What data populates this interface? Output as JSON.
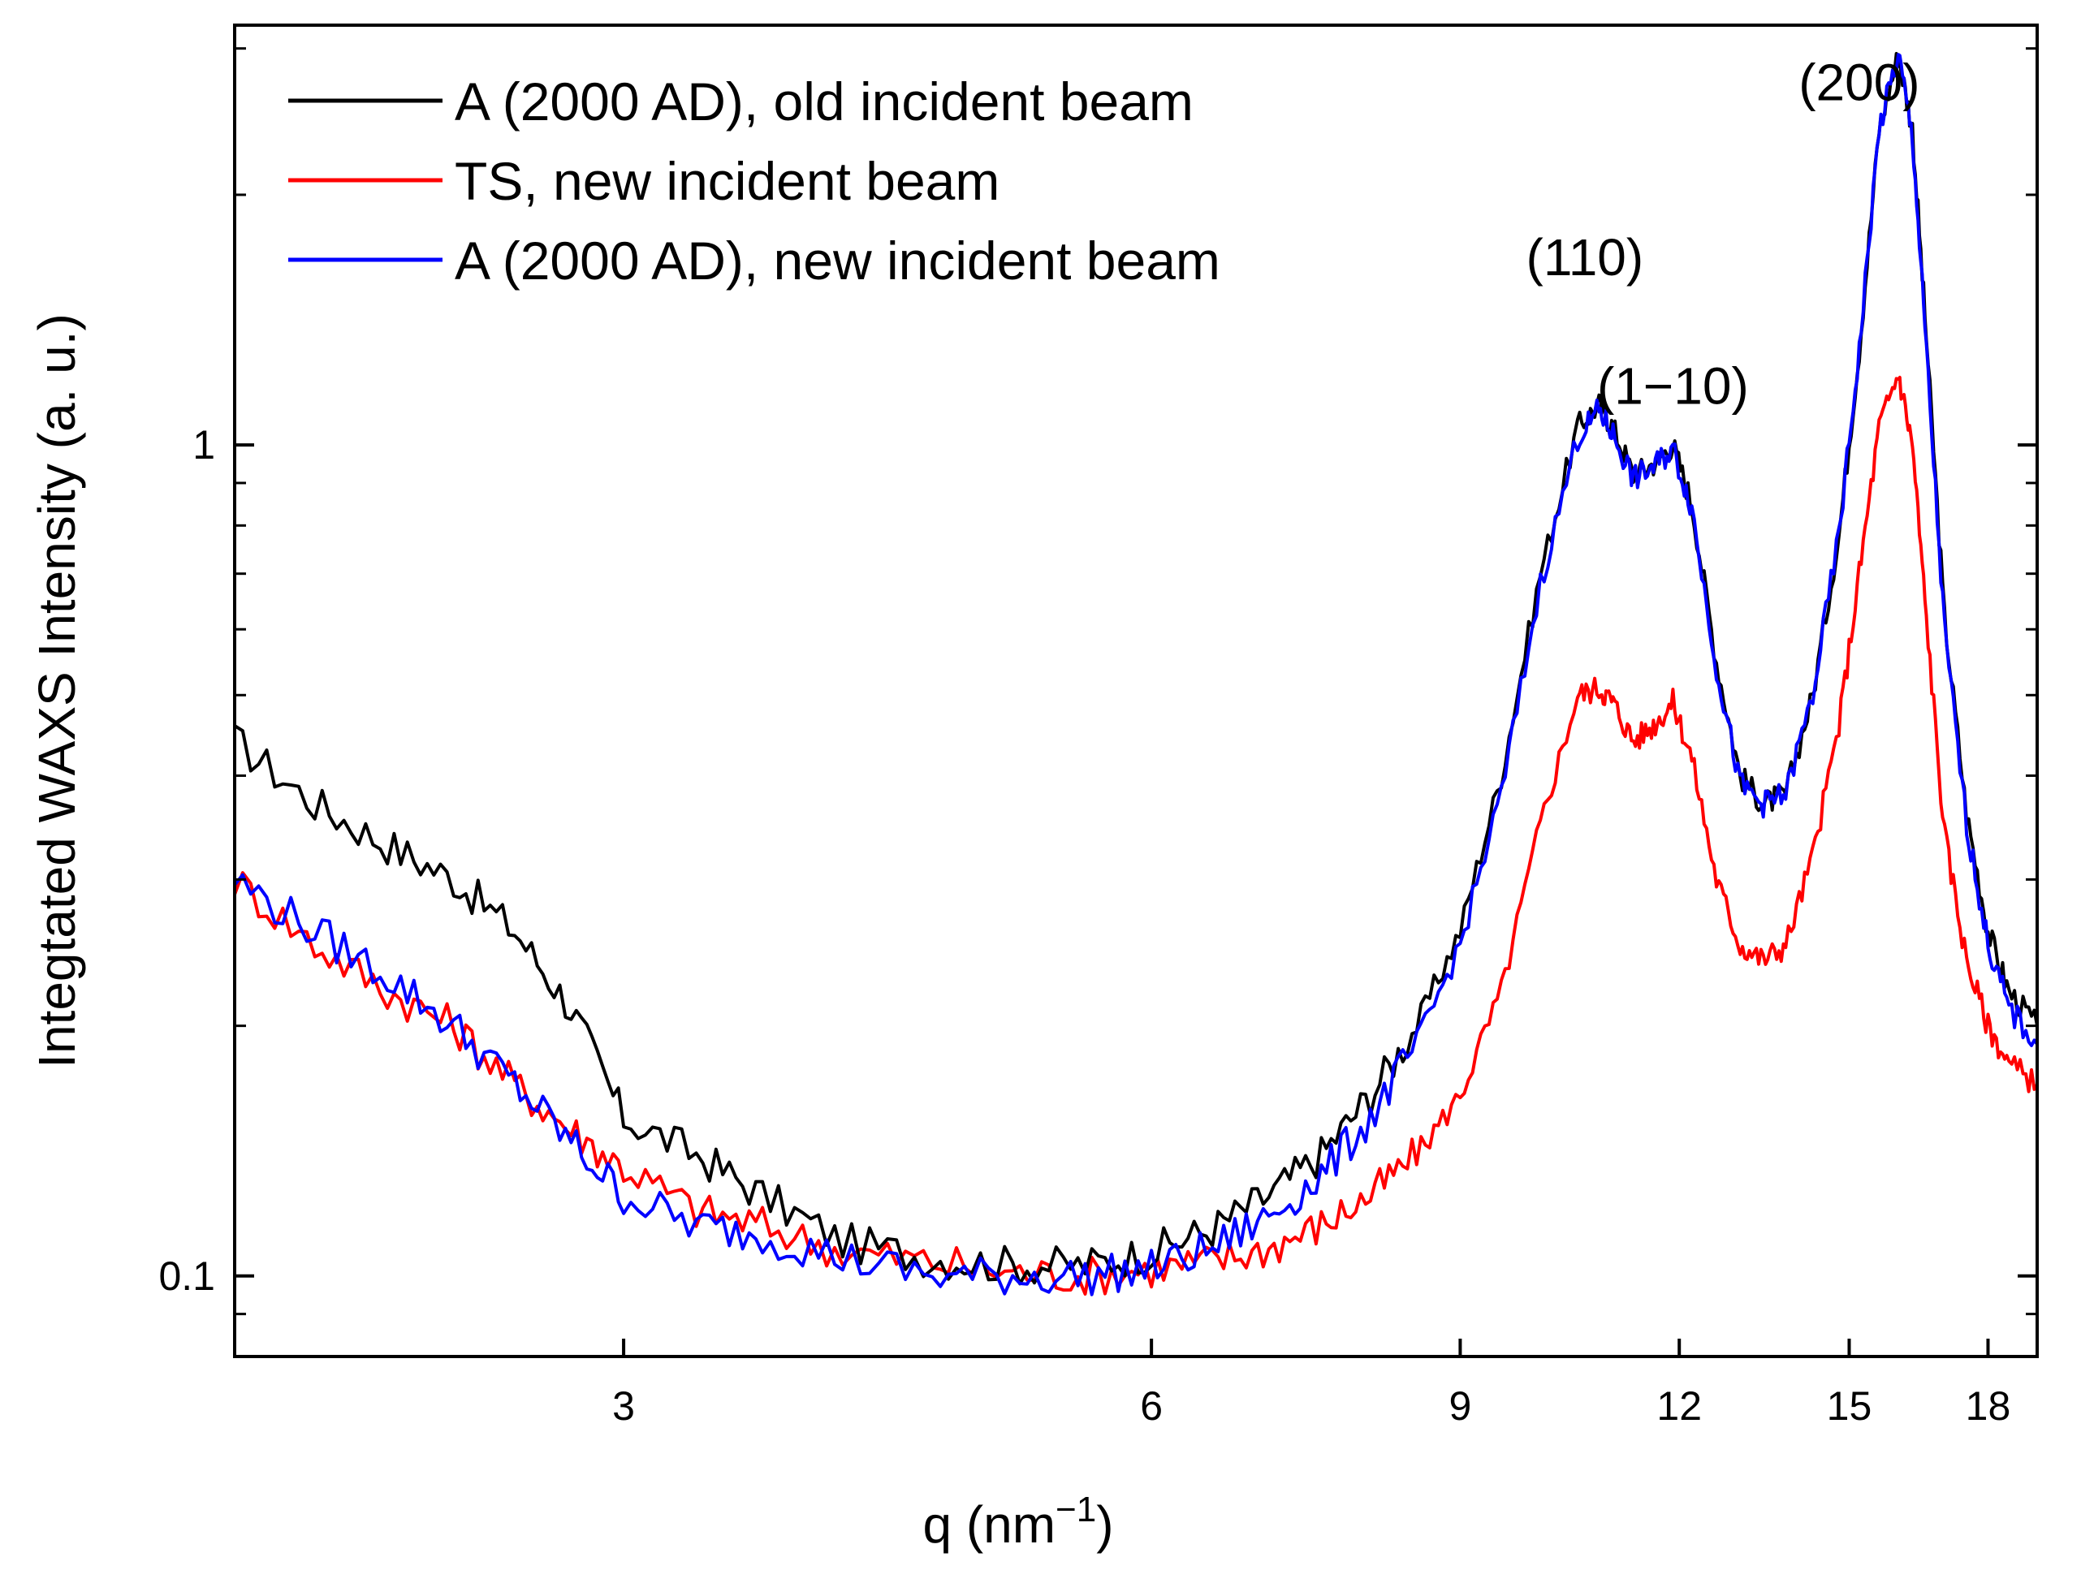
{
  "chart_data": {
    "type": "line",
    "title": "",
    "xlabel": "q (nm",
    "xlabel_sup": "−1",
    "xlabel_close": ")",
    "ylabel": "Integtated WAXS Intensity (a. u.)",
    "xscale": "log",
    "yscale": "log",
    "xlim": [
      1.8,
      19.2
    ],
    "ylim": [
      0.08,
      3.2
    ],
    "xticks": [
      3,
      6,
      9,
      12,
      15,
      18
    ],
    "xtick_labels": [
      "3",
      "6",
      "9",
      "12",
      "15",
      "18"
    ],
    "yticks_labeled": [
      0.1,
      1
    ],
    "ytick_labels": [
      "0.1",
      "1"
    ],
    "y_minor_ticks": [
      0.09,
      0.2,
      0.3,
      0.4,
      0.5,
      0.6,
      0.7,
      0.8,
      0.9,
      2,
      3
    ],
    "legend_position": "top-left",
    "series": [
      {
        "name": "A (2000 AD), old incident beam",
        "color": "#000000",
        "x": [
          1.8,
          2.0,
          2.2,
          2.4,
          2.6,
          2.8,
          3.0,
          3.3,
          3.6,
          4.0,
          4.5,
          5.0,
          5.5,
          6.0,
          6.5,
          7.0,
          7.5,
          8.0,
          8.5,
          9.0,
          9.5,
          10.0,
          10.5,
          10.8,
          11.0,
          11.3,
          11.6,
          11.9,
          12.2,
          12.6,
          13.0,
          13.4,
          13.8,
          14.3,
          14.8,
          15.2,
          15.6,
          16.0,
          16.3,
          16.6,
          17.0,
          17.5,
          18.0,
          18.5,
          19.2
        ],
        "values": [
          0.44,
          0.37,
          0.33,
          0.3,
          0.26,
          0.21,
          0.155,
          0.14,
          0.125,
          0.11,
          0.105,
          0.103,
          0.103,
          0.107,
          0.114,
          0.125,
          0.14,
          0.165,
          0.2,
          0.26,
          0.4,
          0.7,
          1.05,
          1.12,
          1.05,
          0.92,
          0.95,
          1.0,
          0.85,
          0.55,
          0.4,
          0.37,
          0.38,
          0.5,
          0.78,
          1.3,
          2.4,
          2.95,
          2.4,
          1.35,
          0.62,
          0.36,
          0.26,
          0.22,
          0.2
        ]
      },
      {
        "name": "TS, new incident beam",
        "color": "#ff0000",
        "x": [
          1.8,
          2.0,
          2.2,
          2.4,
          2.6,
          2.8,
          3.0,
          3.3,
          3.6,
          4.0,
          4.5,
          5.0,
          5.5,
          6.0,
          6.5,
          7.0,
          7.5,
          8.0,
          8.5,
          9.0,
          9.5,
          10.0,
          10.5,
          10.8,
          11.0,
          11.3,
          11.6,
          11.9,
          12.2,
          12.6,
          13.0,
          13.4,
          13.8,
          14.3,
          14.8,
          15.2,
          15.6,
          16.0,
          16.3,
          16.6,
          17.0,
          17.5,
          18.0,
          18.5,
          19.2
        ],
        "values": [
          0.3,
          0.25,
          0.22,
          0.2,
          0.17,
          0.15,
          0.135,
          0.12,
          0.115,
          0.107,
          0.104,
          0.101,
          0.1,
          0.102,
          0.104,
          0.108,
          0.115,
          0.125,
          0.14,
          0.165,
          0.22,
          0.35,
          0.5,
          0.51,
          0.49,
          0.44,
          0.46,
          0.49,
          0.42,
          0.3,
          0.25,
          0.24,
          0.25,
          0.32,
          0.46,
          0.7,
          1.05,
          1.22,
          1.0,
          0.62,
          0.34,
          0.24,
          0.2,
          0.18,
          0.17
        ]
      },
      {
        "name": "A (2000 AD), new incident beam",
        "color": "#0000ff",
        "x": [
          1.8,
          2.0,
          2.2,
          2.4,
          2.6,
          2.8,
          3.0,
          3.3,
          3.6,
          4.0,
          4.5,
          5.0,
          5.5,
          6.0,
          6.5,
          7.0,
          7.5,
          8.0,
          8.5,
          9.0,
          9.5,
          10.0,
          10.5,
          10.8,
          11.0,
          11.3,
          11.6,
          11.9,
          12.2,
          12.6,
          13.0,
          13.4,
          13.8,
          14.3,
          14.8,
          15.2,
          15.6,
          16.0,
          16.3,
          16.6,
          17.0,
          17.5,
          18.0,
          18.5,
          19.2
        ],
        "values": [
          0.3,
          0.26,
          0.23,
          0.2,
          0.17,
          0.145,
          0.125,
          0.115,
          0.112,
          0.105,
          0.1,
          0.1,
          0.1,
          0.102,
          0.108,
          0.118,
          0.132,
          0.155,
          0.19,
          0.25,
          0.38,
          0.68,
          1.02,
          1.1,
          1.03,
          0.91,
          0.94,
          0.99,
          0.84,
          0.54,
          0.39,
          0.37,
          0.38,
          0.5,
          0.78,
          1.3,
          2.4,
          2.95,
          2.35,
          1.3,
          0.6,
          0.35,
          0.25,
          0.21,
          0.19
        ]
      }
    ],
    "annotations": [
      {
        "text": "(110)",
        "x": 10.6,
        "y": 1.6
      },
      {
        "text": "(1−10)",
        "x": 11.9,
        "y": 1.12
      },
      {
        "text": "(200)",
        "x": 15.2,
        "y": 2.6
      }
    ]
  }
}
